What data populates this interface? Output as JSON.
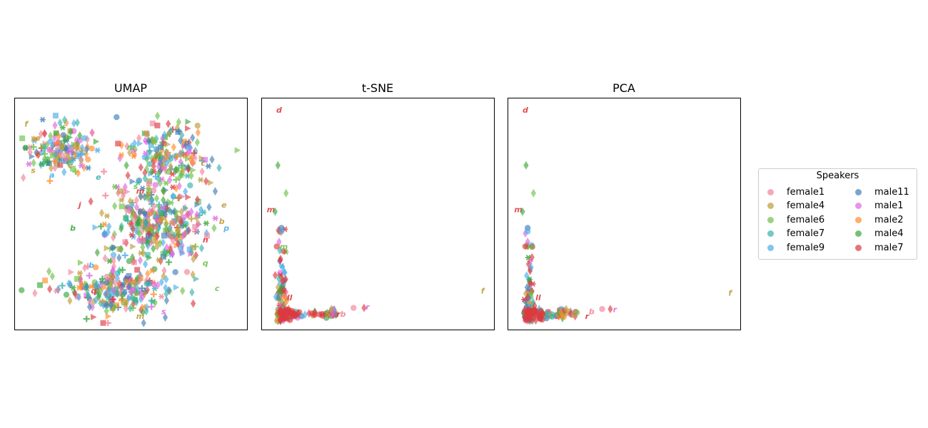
{
  "colors": {
    "female1": "#f0849a",
    "female4": "#bd9c3a",
    "female6": "#6cc24a",
    "female7": "#37b3a9",
    "female9": "#4aaeea",
    "male11": "#3f7fb8",
    "male1": "#e066e0",
    "male2": "#ff8c2a",
    "male4": "#3aa83a",
    "male7": "#dc3a40"
  },
  "legend": {
    "title": "Speakers",
    "items": [
      "female1",
      "female4",
      "female6",
      "female7",
      "female9",
      "male11",
      "male1",
      "male2",
      "male4",
      "male7"
    ]
  },
  "chart_data": [
    {
      "type": "scatter",
      "title": "UMAP",
      "note": "dense cloud of ~900 points across speakers; markers vary (diamond, circle, square, triangle, plus, star, letter glyphs)",
      "clusters": [
        {
          "center": [
            0.2,
            0.22
          ],
          "spread": [
            0.14,
            0.1
          ],
          "weight": 0.16
        },
        {
          "center": [
            0.65,
            0.25
          ],
          "spread": [
            0.17,
            0.12
          ],
          "weight": 0.2
        },
        {
          "center": [
            0.6,
            0.55
          ],
          "spread": [
            0.2,
            0.16
          ],
          "weight": 0.36
        },
        {
          "center": [
            0.45,
            0.82
          ],
          "spread": [
            0.22,
            0.1
          ],
          "weight": 0.28
        }
      ],
      "labeled_points": [
        {
          "label": "f",
          "x": 0.05,
          "y": 0.11,
          "speaker": "female4"
        },
        {
          "label": "s",
          "x": 0.08,
          "y": 0.31,
          "speaker": "female4"
        },
        {
          "label": "e",
          "x": 0.1,
          "y": 0.17,
          "speaker": "female4"
        },
        {
          "label": "b",
          "x": 0.25,
          "y": 0.56,
          "speaker": "male4"
        },
        {
          "label": "m",
          "x": 0.5,
          "y": 0.21,
          "speaker": "female6"
        },
        {
          "label": "e",
          "x": 0.72,
          "y": 0.33,
          "speaker": "female6"
        },
        {
          "label": "p",
          "x": 0.74,
          "y": 0.19,
          "speaker": "male11"
        },
        {
          "label": "c",
          "x": 0.81,
          "y": 0.28,
          "speaker": "female4"
        },
        {
          "label": "e",
          "x": 0.9,
          "y": 0.46,
          "speaker": "female4"
        },
        {
          "label": "b",
          "x": 0.89,
          "y": 0.53,
          "speaker": "female4"
        },
        {
          "label": "p",
          "x": 0.91,
          "y": 0.56,
          "speaker": "female9"
        },
        {
          "label": "m",
          "x": 0.54,
          "y": 0.4,
          "speaker": "male7"
        },
        {
          "label": "n",
          "x": 0.82,
          "y": 0.61,
          "speaker": "male7"
        },
        {
          "label": "q",
          "x": 0.82,
          "y": 0.71,
          "speaker": "female6"
        },
        {
          "label": "c",
          "x": 0.87,
          "y": 0.82,
          "speaker": "female6"
        },
        {
          "label": "s",
          "x": 0.64,
          "y": 0.92,
          "speaker": "male1"
        },
        {
          "label": "m",
          "x": 0.54,
          "y": 0.94,
          "speaker": "female4"
        },
        {
          "label": "c",
          "x": 0.5,
          "y": 0.78,
          "speaker": "male1"
        },
        {
          "label": "b",
          "x": 0.33,
          "y": 0.72,
          "speaker": "female9"
        },
        {
          "label": "q",
          "x": 0.34,
          "y": 0.83,
          "speaker": "male7"
        },
        {
          "label": "a",
          "x": 0.16,
          "y": 0.33,
          "speaker": "female9"
        },
        {
          "label": "c",
          "x": 0.24,
          "y": 0.29,
          "speaker": "female4"
        },
        {
          "label": "e",
          "x": 0.36,
          "y": 0.34,
          "speaker": "female7"
        },
        {
          "label": "s",
          "x": 0.52,
          "y": 0.38,
          "speaker": "female6"
        },
        {
          "label": "j",
          "x": 0.28,
          "y": 0.46,
          "speaker": "male7"
        }
      ],
      "xticks": [],
      "yticks": []
    },
    {
      "type": "scatter",
      "title": "t-SNE",
      "points": [
        {
          "label": "d",
          "x": 0.075,
          "y": 0.05,
          "speaker": "male7",
          "marker": "letter"
        },
        {
          "x": 0.07,
          "y": 0.29,
          "speaker": "male4",
          "marker": "diamond"
        },
        {
          "x": 0.105,
          "y": 0.41,
          "speaker": "female6",
          "marker": "diamond"
        },
        {
          "label": "m",
          "x": 0.04,
          "y": 0.48,
          "speaker": "male7",
          "marker": "letter"
        },
        {
          "x": 0.058,
          "y": 0.49,
          "speaker": "male4",
          "marker": "diamond"
        },
        {
          "x": 0.085,
          "y": 0.56,
          "speaker": "male11",
          "marker": "circle"
        },
        {
          "x": 0.085,
          "y": 0.575,
          "speaker": "female9",
          "marker": "circle"
        },
        {
          "x": 0.075,
          "y": 0.62,
          "speaker": "male1",
          "marker": "diamond"
        },
        {
          "x": 0.065,
          "y": 0.64,
          "speaker": "male7",
          "marker": "circle"
        },
        {
          "label": "m",
          "x": 0.095,
          "y": 0.64,
          "speaker": "female6",
          "marker": "letter"
        },
        {
          "x": 0.08,
          "y": 0.7,
          "speaker": "male7",
          "marker": "diamond"
        },
        {
          "x": 0.09,
          "y": 0.73,
          "speaker": "female9",
          "marker": "diamond"
        },
        {
          "x": 0.09,
          "y": 0.79,
          "speaker": "male7",
          "marker": "diamond"
        },
        {
          "x": 0.09,
          "y": 0.86,
          "speaker": "male2",
          "marker": "diamond"
        },
        {
          "label": "ll",
          "x": 0.12,
          "y": 0.86,
          "speaker": "male7",
          "marker": "letter"
        },
        {
          "x": 0.3,
          "y": 0.91,
          "speaker": "female4",
          "marker": "diamond"
        },
        {
          "label": "S",
          "x": 0.285,
          "y": 0.93,
          "speaker": "female4",
          "marker": "letter"
        },
        {
          "label": "b",
          "x": 0.35,
          "y": 0.93,
          "speaker": "female1",
          "marker": "letter"
        },
        {
          "x": 0.395,
          "y": 0.905,
          "speaker": "female1",
          "marker": "circle"
        },
        {
          "label": "r",
          "x": 0.33,
          "y": 0.93,
          "speaker": "male7",
          "marker": "letter"
        },
        {
          "x": 0.44,
          "y": 0.905,
          "speaker": "male7",
          "marker": "diamond"
        },
        {
          "label": "r",
          "x": 0.455,
          "y": 0.9,
          "speaker": "male1",
          "marker": "letter"
        },
        {
          "label": "f",
          "x": 0.95,
          "y": 0.83,
          "speaker": "female4",
          "marker": "letter"
        }
      ],
      "dense_regions": [
        {
          "description": "vertical band",
          "x": 0.085,
          "y_range": [
            0.5,
            0.97
          ]
        },
        {
          "description": "horizontal band",
          "y": 0.93,
          "x_range": [
            0.07,
            0.33
          ]
        }
      ],
      "xticks": [],
      "yticks": []
    },
    {
      "type": "scatter",
      "title": "PCA",
      "points": [
        {
          "label": "d",
          "x": 0.075,
          "y": 0.05,
          "speaker": "male7",
          "marker": "letter"
        },
        {
          "x": 0.078,
          "y": 0.29,
          "speaker": "male4",
          "marker": "diamond"
        },
        {
          "x": 0.11,
          "y": 0.41,
          "speaker": "female6",
          "marker": "diamond"
        },
        {
          "label": "m",
          "x": 0.045,
          "y": 0.48,
          "speaker": "male7",
          "marker": "letter"
        },
        {
          "x": 0.063,
          "y": 0.49,
          "speaker": "male4",
          "marker": "diamond"
        },
        {
          "x": 0.085,
          "y": 0.56,
          "speaker": "male11",
          "marker": "circle"
        },
        {
          "x": 0.085,
          "y": 0.575,
          "speaker": "female9",
          "marker": "circle"
        },
        {
          "x": 0.085,
          "y": 0.62,
          "speaker": "male1",
          "marker": "diamond"
        },
        {
          "x": 0.075,
          "y": 0.64,
          "speaker": "male7",
          "marker": "circle"
        },
        {
          "label": "m",
          "x": 0.1,
          "y": 0.64,
          "speaker": "female6",
          "marker": "letter"
        },
        {
          "x": 0.1,
          "y": 0.73,
          "speaker": "female9",
          "marker": "diamond"
        },
        {
          "x": 0.095,
          "y": 0.8,
          "speaker": "male7",
          "marker": "diamond"
        },
        {
          "label": "ll",
          "x": 0.13,
          "y": 0.86,
          "speaker": "male7",
          "marker": "letter"
        },
        {
          "x": 0.25,
          "y": 0.91,
          "speaker": "female4",
          "marker": "diamond"
        },
        {
          "label": "S",
          "x": 0.28,
          "y": 0.935,
          "speaker": "female4",
          "marker": "letter"
        },
        {
          "label": "b",
          "x": 0.36,
          "y": 0.92,
          "speaker": "female1",
          "marker": "letter"
        },
        {
          "x": 0.405,
          "y": 0.91,
          "speaker": "female1",
          "marker": "circle"
        },
        {
          "label": "r",
          "x": 0.34,
          "y": 0.94,
          "speaker": "male7",
          "marker": "letter"
        },
        {
          "x": 0.44,
          "y": 0.91,
          "speaker": "male7",
          "marker": "diamond"
        },
        {
          "label": "r",
          "x": 0.46,
          "y": 0.91,
          "speaker": "male1",
          "marker": "letter"
        },
        {
          "label": "f",
          "x": 0.955,
          "y": 0.84,
          "speaker": "female4",
          "marker": "letter"
        }
      ],
      "dense_regions": [
        {
          "description": "vertical band",
          "x": 0.09,
          "y_range": [
            0.5,
            0.97
          ]
        },
        {
          "description": "horizontal band",
          "y": 0.93,
          "x_range": [
            0.07,
            0.3
          ]
        }
      ],
      "xticks": [],
      "yticks": []
    }
  ]
}
